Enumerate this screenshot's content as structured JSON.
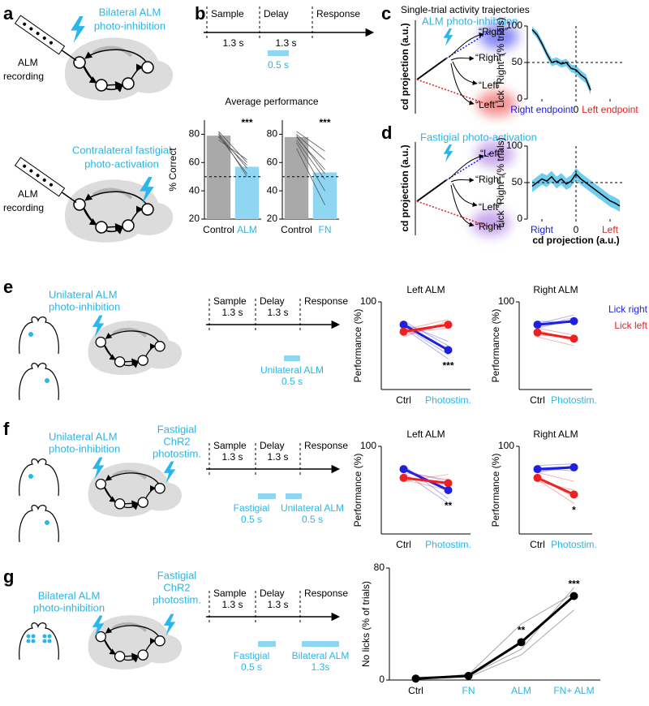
{
  "panels": {
    "a": {
      "label": "a",
      "upper_light": [
        "Bilateral ALM",
        "photo-inhibition"
      ],
      "upper_recording": [
        "ALM",
        "recording"
      ],
      "lower_light": [
        "Contralateral fastigial",
        "photo-activation"
      ],
      "lower_recording": [
        "ALM",
        "recording"
      ]
    },
    "b": {
      "label": "b",
      "epochs": [
        "Sample",
        "Delay",
        "Response"
      ],
      "durations": [
        "1.3 s",
        "1.3 s"
      ],
      "stim1": [
        "0.5 s"
      ],
      "title": "Average performance"
    },
    "c": {
      "label": "c",
      "title": "Single-trial activity trajectories",
      "light": "ALM photo-inhibition",
      "ylabel": "cd projection (a.u.)",
      "endpoints": [
        "“Right”",
        "“Right”",
        "“Left”",
        "“Left”"
      ]
    },
    "d": {
      "label": "d",
      "light": "Fastigial photo-activation",
      "ylabel": "cd projection (a.u.)",
      "endpoints": [
        "“Left”",
        "“Right”",
        "“Left”",
        "“Right”"
      ]
    },
    "e": {
      "label": "e",
      "light": [
        "Unilateral ALM",
        "photo-inhibition"
      ],
      "epochs": [
        "Sample",
        "Delay",
        "Response"
      ],
      "durations": [
        "1.3 s",
        "1.3 s"
      ],
      "stim1": [
        "Unilateral ALM",
        "0.5 s"
      ]
    },
    "f": {
      "label": "f",
      "light": [
        "Unilateral ALM",
        "photo-inhibition"
      ],
      "light2": [
        "Fastigial",
        "ChR2",
        "photostim."
      ],
      "epochs": [
        "Sample",
        "Delay",
        "Response"
      ],
      "durations": [
        "1.3 s",
        "1.3 s"
      ],
      "stim1": [
        "Fastigial",
        "0.5 s"
      ],
      "stim2": [
        "Unilateral ALM",
        "0.5 s"
      ]
    },
    "g": {
      "label": "g",
      "light": [
        "Bilateral ALM",
        "photo-inhibition"
      ],
      "light2": [
        "Fastigial",
        "ChR2",
        "photostim."
      ],
      "epochs": [
        "Sample",
        "Delay",
        "Response"
      ],
      "durations": [
        "1.3 s",
        "1.3 s"
      ],
      "stim1": [
        "Fastigial",
        "0.5 s"
      ],
      "stim2": [
        "Bilateral ALM",
        "1.3s"
      ]
    }
  },
  "chart_data": [
    {
      "type": "bar",
      "categories": [
        "Control",
        "ALM"
      ],
      "category_colors": [
        "#000000",
        "#29b6e8"
      ],
      "values": [
        79,
        57
      ],
      "colors": [
        "#a9a9a9",
        "#8fd6f2"
      ],
      "lines": [
        [
          82,
          60
        ],
        [
          80,
          56
        ],
        [
          79,
          52
        ],
        [
          78,
          58
        ],
        [
          76,
          62
        ],
        [
          81,
          50
        ]
      ],
      "ylim": [
        20,
        90
      ],
      "yticks": [
        20,
        40,
        60,
        80
      ],
      "ylabel": "% Correct",
      "hline": 50,
      "annotations": [
        {
          "text": "***",
          "at": 1
        }
      ]
    },
    {
      "type": "bar",
      "categories": [
        "Control",
        "FN"
      ],
      "category_colors": [
        "#000000",
        "#29b6e8"
      ],
      "values": [
        78,
        53
      ],
      "colors": [
        "#a9a9a9",
        "#8fd6f2"
      ],
      "lines": [
        [
          82,
          68
        ],
        [
          80,
          62
        ],
        [
          78,
          55
        ],
        [
          76,
          48
        ],
        [
          74,
          40
        ],
        [
          70,
          30
        ],
        [
          79,
          52
        ]
      ],
      "ylim": [
        20,
        90
      ],
      "yticks": [
        20,
        40,
        60,
        80
      ],
      "hline": 50,
      "annotations": [
        {
          "text": "***",
          "at": 1
        }
      ]
    },
    {
      "type": "line",
      "x": [
        -9,
        -8,
        -7,
        -6,
        -5,
        -4,
        -3,
        -2,
        -1,
        0,
        1,
        2,
        3
      ],
      "values": [
        95,
        88,
        76,
        62,
        50,
        52,
        48,
        50,
        42,
        40,
        33,
        28,
        12
      ],
      "errors": [
        4,
        5,
        5,
        5,
        5,
        5,
        5,
        5,
        5,
        6,
        6,
        6,
        6
      ],
      "color": "#000000",
      "band_color": "#6fcdf0",
      "xlim": [
        -10,
        10
      ],
      "xticks": [
        {
          "value": -7,
          "label": "Right endpoint"
        },
        0,
        {
          "value": 7,
          "label": "Left endpoint"
        }
      ],
      "xtick_colors": [
        "#1a1adb",
        "#000000",
        "#e0201e"
      ],
      "ylim": [
        0,
        100
      ],
      "yticks": [
        0,
        50,
        100
      ],
      "ylabel": "Lick “Right” (% trials)",
      "hline": 50,
      "vline": 0
    },
    {
      "type": "line",
      "x": [
        -9,
        -8,
        -7,
        -6,
        -5,
        -4,
        -3,
        -2,
        -1,
        0,
        1,
        2,
        3,
        4,
        5,
        6,
        7,
        8,
        9
      ],
      "values": [
        45,
        50,
        55,
        52,
        58,
        50,
        55,
        48,
        52,
        62,
        55,
        50,
        45,
        40,
        35,
        30,
        25,
        22,
        18
      ],
      "errors": [
        8,
        8,
        8,
        8,
        8,
        8,
        8,
        8,
        8,
        8,
        8,
        8,
        8,
        8,
        8,
        8,
        8,
        8,
        8
      ],
      "color": "#000000",
      "band_color": "#6fcdf0",
      "xlim": [
        -10,
        10
      ],
      "xticks": [
        {
          "value": -7,
          "label": "Right"
        },
        0,
        {
          "value": 7,
          "label": "Left"
        }
      ],
      "xtick_colors": [
        "#1a1adb",
        "#000000",
        "#e0201e"
      ],
      "ylim": [
        0,
        100
      ],
      "yticks": [
        0,
        50,
        100
      ],
      "ylabel": "Lick “Right” (% trials)",
      "xlabel": "cd projection (a.u.)",
      "hline": 50,
      "vline": 0
    },
    {
      "type": "line",
      "title": "Left ALM",
      "categories": [
        "Ctrl",
        "Photostim."
      ],
      "category_colors": [
        "#000000",
        "#29b6e8"
      ],
      "series": [
        {
          "color": "#1f1fe0",
          "values": [
            74,
            45
          ],
          "individual": [
            [
              72,
              40
            ],
            [
              75,
              55
            ],
            [
              70,
              35
            ],
            [
              78,
              50
            ]
          ]
        },
        {
          "color": "#ee2020",
          "values": [
            66,
            74
          ],
          "individual": [
            [
              60,
              78
            ],
            [
              65,
              70
            ],
            [
              68,
              80
            ],
            [
              62,
              75
            ]
          ]
        }
      ],
      "ylim": [
        0,
        100
      ],
      "yticks": [
        100
      ],
      "ylabel": "Performance (%)",
      "annotations": [
        {
          "text": "***",
          "at": 1,
          "series": 0,
          "placement": "below"
        }
      ]
    },
    {
      "type": "line",
      "title": "Right ALM",
      "categories": [
        "Ctrl",
        "Photostim."
      ],
      "category_colors": [
        "#000000",
        "#29b6e8"
      ],
      "series": [
        {
          "name": "Lick right",
          "color": "#1f1fe0",
          "values": [
            74,
            78
          ],
          "individual": [
            [
              70,
              80
            ],
            [
              75,
              85
            ],
            [
              78,
              76
            ],
            [
              72,
              82
            ]
          ]
        },
        {
          "name": "Lick left",
          "color": "#ee2020",
          "values": [
            65,
            58
          ],
          "individual": [
            [
              68,
              55
            ],
            [
              62,
              60
            ],
            [
              70,
              62
            ],
            [
              60,
              50
            ]
          ]
        }
      ],
      "ylim": [
        0,
        100
      ],
      "yticks": [
        100
      ],
      "ylabel": "Performance (%)",
      "legend": "upper right"
    },
    {
      "type": "line",
      "title": "Left ALM",
      "categories": [
        "Ctrl",
        "Photostim."
      ],
      "category_colors": [
        "#000000",
        "#29b6e8"
      ],
      "series": [
        {
          "color": "#1f1fe0",
          "values": [
            74,
            50
          ],
          "individual": [
            [
              72,
              60
            ],
            [
              78,
              40
            ],
            [
              70,
              35
            ],
            [
              76,
              50
            ]
          ]
        },
        {
          "color": "#ee2020",
          "values": [
            64,
            58
          ],
          "individual": [
            [
              60,
              68
            ],
            [
              65,
              55
            ],
            [
              70,
              62
            ],
            [
              62,
              50
            ]
          ]
        }
      ],
      "ylim": [
        0,
        100
      ],
      "yticks": [
        100
      ],
      "ylabel": "Performance (%)",
      "annotations": [
        {
          "text": "**",
          "at": 1,
          "series": 0,
          "placement": "below"
        }
      ]
    },
    {
      "type": "line",
      "title": "Right ALM",
      "categories": [
        "Ctrl",
        "Photostim."
      ],
      "category_colors": [
        "#000000",
        "#29b6e8"
      ],
      "series": [
        {
          "color": "#1f1fe0",
          "values": [
            74,
            76
          ],
          "individual": [
            [
              70,
              78
            ],
            [
              75,
              72
            ],
            [
              78,
              80
            ],
            [
              72,
              75
            ]
          ]
        },
        {
          "color": "#ee2020",
          "values": [
            64,
            45
          ],
          "individual": [
            [
              60,
              50
            ],
            [
              65,
              42
            ],
            [
              70,
              60
            ],
            [
              62,
              35
            ]
          ]
        }
      ],
      "ylim": [
        0,
        100
      ],
      "yticks": [
        100
      ],
      "ylabel": "Performance (%)",
      "annotations": [
        {
          "text": "*",
          "at": 1,
          "series": 1,
          "placement": "below"
        }
      ]
    },
    {
      "type": "line",
      "categories": [
        "Ctrl",
        "FN",
        "ALM",
        "FN+ ALM"
      ],
      "category_colors": [
        "#000000",
        "#29b6e8",
        "#29b6e8",
        "#29b6e8"
      ],
      "series": [
        {
          "color": "#000000",
          "values": [
            1,
            3,
            27,
            60
          ],
          "individual": [
            [
              1,
              2,
              18,
              50
            ],
            [
              2,
              3,
              22,
              66
            ],
            [
              1,
              4,
              40,
              62
            ]
          ]
        }
      ],
      "ylim": [
        0,
        80
      ],
      "yticks": [
        0,
        80
      ],
      "ylabel": "No licks (% of trials)",
      "annotations": [
        {
          "text": "**",
          "at": 2,
          "series": 0,
          "placement": "above"
        },
        {
          "text": "***",
          "at": 3,
          "series": 0,
          "placement": "above"
        }
      ]
    }
  ]
}
